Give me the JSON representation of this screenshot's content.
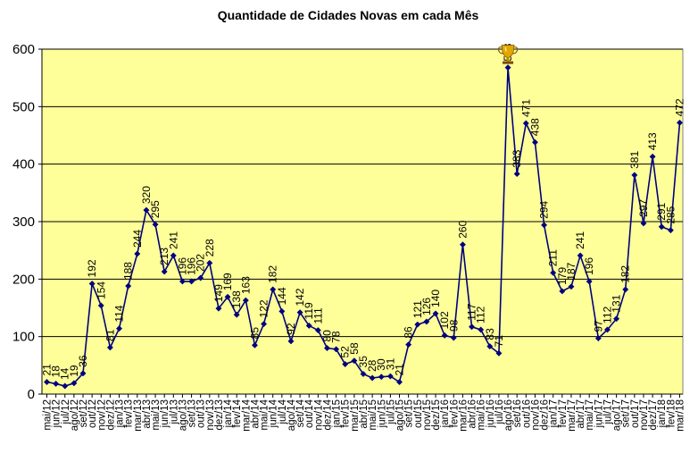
{
  "chart_data": {
    "type": "line",
    "title": "Quantidade de Cidades Novas em cada Mês",
    "xlabel": "",
    "ylabel": "",
    "ylim": [
      0,
      600
    ],
    "yticks": [
      0,
      100,
      200,
      300,
      400,
      500,
      600
    ],
    "grid": "horizontal",
    "legend": "none",
    "colors": {
      "plot_background": "#ffff99",
      "line": "#000080",
      "marker": "#000080",
      "gridline": "#000000"
    },
    "peak_marker_icon": "trophy-icon",
    "categories": [
      "mai/12",
      "jun/12",
      "jul/12",
      "ago/12",
      "set/12",
      "out/12",
      "nov/12",
      "dez/12",
      "jan/13",
      "fev/13",
      "mar/13",
      "abr/13",
      "mai/13",
      "jun/13",
      "jul/13",
      "ago/13",
      "set/13",
      "out/13",
      "nov/13",
      "dez/13",
      "jan/14",
      "fev/14",
      "mar/14",
      "abr/14",
      "mai/14",
      "jun/14",
      "jul/14",
      "ago/14",
      "set/14",
      "out/14",
      "nov/14",
      "dez/14",
      "jan/15",
      "fev/15",
      "mar/15",
      "abr/15",
      "mai/15",
      "jun/15",
      "jul/15",
      "ago/15",
      "set/15",
      "out/15",
      "nov/15",
      "dez/15",
      "jan/16",
      "fev/16",
      "mar/16",
      "abr/16",
      "mai/16",
      "jun/16",
      "jul/16",
      "ago/16",
      "set/16",
      "out/16",
      "nov/16",
      "dez/16",
      "jan/17",
      "fev/17",
      "mar/17",
      "abr/17",
      "mai/17",
      "jun/17",
      "jul/17",
      "ago/17",
      "set/17",
      "out/17",
      "nov/17",
      "dez/17",
      "jan/18",
      "fev/18",
      "mar/18"
    ],
    "series": [
      {
        "values": [
          21,
          18,
          14,
          19,
          36,
          192,
          154,
          81,
          114,
          188,
          244,
          320,
          295,
          213,
          241,
          196,
          196,
          202,
          228,
          149,
          169,
          138,
          163,
          85,
          122,
          182,
          144,
          92,
          142,
          119,
          111,
          80,
          78,
          52,
          58,
          35,
          28,
          30,
          31,
          21,
          86,
          121,
          126,
          140,
          102,
          98,
          260,
          117,
          112,
          83,
          71,
          568,
          383,
          471,
          438,
          294,
          211,
          179,
          187,
          241,
          196,
          97,
          112,
          131,
          182,
          381,
          297,
          413,
          291,
          285,
          472
        ]
      }
    ]
  }
}
